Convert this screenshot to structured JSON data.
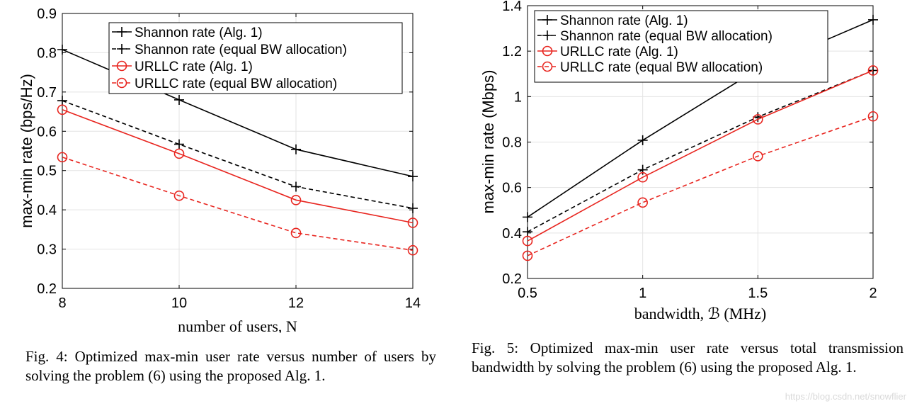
{
  "chart_data": [
    {
      "type": "line",
      "xlabel": "number of users, N",
      "ylabel": "max-min rate (bps/Hz)",
      "x": [
        8,
        10,
        12,
        14
      ],
      "xticks": [
        "8",
        "10",
        "12",
        "14"
      ],
      "yticks": [
        "0.2",
        "0.3",
        "0.4",
        "0.5",
        "0.6",
        "0.7",
        "0.8",
        "0.9"
      ],
      "xlim": [
        8,
        14
      ],
      "ylim": [
        0.2,
        0.9
      ],
      "grid": true,
      "legend_position": "top-right",
      "series": [
        {
          "name": "Shannon rate (Alg. 1)",
          "color": "#000000",
          "style": "solid",
          "marker": "plus",
          "values": [
            0.808,
            0.68,
            0.554,
            0.485
          ]
        },
        {
          "name": "Shannon rate (equal BW allocation)",
          "color": "#000000",
          "style": "dashed",
          "marker": "plus",
          "values": [
            0.678,
            0.567,
            0.459,
            0.404
          ]
        },
        {
          "name": "URLLC rate (Alg. 1)",
          "color": "#e8251f",
          "style": "solid",
          "marker": "circle",
          "values": [
            0.655,
            0.543,
            0.425,
            0.367
          ]
        },
        {
          "name": "URLLC rate (equal BW allocation)",
          "color": "#e8251f",
          "style": "dashed",
          "marker": "circle",
          "values": [
            0.534,
            0.436,
            0.341,
            0.297
          ]
        }
      ]
    },
    {
      "type": "line",
      "xlabel": "bandwidth, ℬ (MHz)",
      "ylabel": "max-min rate (Mbps)",
      "x": [
        0.5,
        1,
        1.5,
        2
      ],
      "xticks": [
        "0.5",
        "1",
        "1.5",
        "2"
      ],
      "yticks": [
        "0.2",
        "0.4",
        "0.6",
        "0.8",
        "1",
        "1.2",
        "1.4"
      ],
      "xlim": [
        0.5,
        2
      ],
      "ylim": [
        0.2,
        1.4
      ],
      "grid": true,
      "legend_position": "top-left",
      "series": [
        {
          "name": "Shannon rate (Alg. 1)",
          "color": "#000000",
          "style": "solid",
          "marker": "plus",
          "values": [
            0.47,
            0.808,
            1.12,
            1.338
          ]
        },
        {
          "name": "Shannon rate (equal BW allocation)",
          "color": "#000000",
          "style": "dashed",
          "marker": "plus",
          "values": [
            0.405,
            0.678,
            0.91,
            1.115
          ]
        },
        {
          "name": "URLLC rate (Alg. 1)",
          "color": "#e8251f",
          "style": "solid",
          "marker": "circle",
          "values": [
            0.365,
            0.645,
            0.9,
            1.115
          ]
        },
        {
          "name": "URLLC rate (equal BW allocation)",
          "color": "#e8251f",
          "style": "dashed",
          "marker": "circle",
          "values": [
            0.3,
            0.534,
            0.738,
            0.913
          ]
        }
      ]
    }
  ],
  "captions": {
    "fig4": "Fig. 4: Optimized max-min user rate versus number of users by solving the problem (6) using the proposed Alg. 1.",
    "fig5": "Fig. 5: Optimized max-min user rate versus total transmission bandwidth by solving the problem (6) using the proposed Alg. 1."
  },
  "watermark": "https://blog.csdn.net/snowflier"
}
